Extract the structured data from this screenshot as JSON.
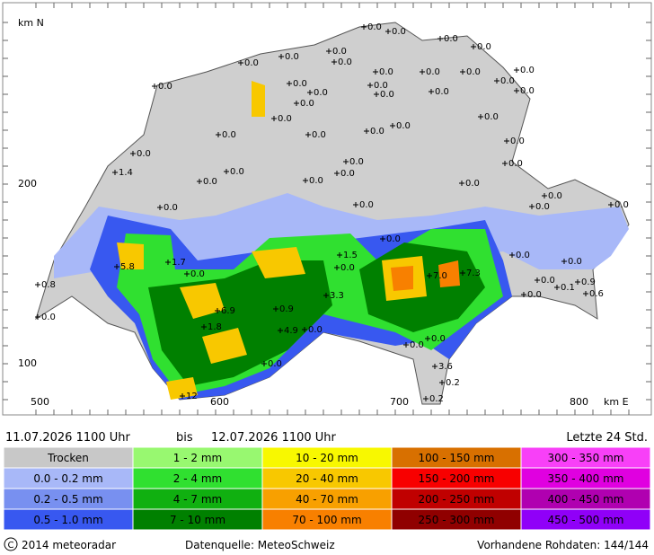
{
  "axis": {
    "north": "km N",
    "y200": "200",
    "y100": "100",
    "x500": "500",
    "x600": "600",
    "x700": "700",
    "x800": "800",
    "east": "km E"
  },
  "header": {
    "from": "11.07.2026 1100 Uhr",
    "bis": "bis",
    "to": "12.07.2026 1100 Uhr",
    "period": "Letzte 24 Std."
  },
  "legend": [
    [
      {
        "label": "Trocken",
        "color": "#c8c8c8"
      },
      {
        "label": "0.0 - 0.2 mm",
        "color": "#a8b8f8"
      },
      {
        "label": "0.2 - 0.5 mm",
        "color": "#7890f0"
      },
      {
        "label": "0.5 - 1.0 mm",
        "color": "#3858f0"
      }
    ],
    [
      {
        "label": "1 - 2 mm",
        "color": "#98f870"
      },
      {
        "label": "2 - 4 mm",
        "color": "#30e030"
      },
      {
        "label": "4 - 7 mm",
        "color": "#10b010"
      },
      {
        "label": "7 - 10 mm",
        "color": "#008000"
      }
    ],
    [
      {
        "label": "10 - 20 mm",
        "color": "#f8f800"
      },
      {
        "label": "20 - 40 mm",
        "color": "#f8c800"
      },
      {
        "label": "40 - 70 mm",
        "color": "#f8a000"
      },
      {
        "label": "70 - 100 mm",
        "color": "#f88000"
      }
    ],
    [
      {
        "label": "100 - 150 mm",
        "color": "#d87000"
      },
      {
        "label": "150 - 200 mm",
        "color": "#f80000"
      },
      {
        "label": "200 - 250 mm",
        "color": "#c00000"
      },
      {
        "label": "250 - 300 mm",
        "color": "#900000"
      }
    ],
    [
      {
        "label": "300 - 350 mm",
        "color": "#f840f8"
      },
      {
        "label": "350 - 400 mm",
        "color": "#e000e0"
      },
      {
        "label": "400 - 450 mm",
        "color": "#b000b0"
      },
      {
        "label": "450 - 500 mm",
        "color": "#9000f8"
      }
    ]
  ],
  "footer": {
    "copyright": "2014 meteoradar",
    "source": "Datenquelle: MeteoSchweiz",
    "raw": "Vorhandene Rohdaten: 144/144"
  },
  "stations": [
    "0.0",
    "0.0",
    "0.0",
    "0.0",
    "0.0",
    "0.0",
    "0.0",
    "0.0",
    "0.0",
    "0.0",
    "0.0",
    "0.0",
    "0.0",
    "0.0",
    "0.0",
    "0.0",
    "0.0",
    "0.0",
    "0.0",
    "0.0",
    "0.0",
    "0.0",
    "0.0",
    "0.0",
    "0.0",
    "0.0",
    "0.0",
    "0.0",
    "0.0",
    "0.0",
    "0.0",
    "1.4",
    "0.0",
    "0.0",
    "0.0",
    "0.0",
    "0.0",
    "0.0",
    "0.0",
    "0.0",
    "0.0",
    "0.0",
    "0.0",
    "1.7",
    "5.8",
    "1.5",
    "0.0",
    "0.0",
    "0.0",
    "0.0",
    "7.0",
    "7.3",
    "0.8",
    "0.0",
    "0.9",
    "0.1",
    "0.0",
    "0.6",
    "3.3",
    "6.9",
    "0.9",
    "0.0",
    "1.8",
    "0.0",
    "4.9",
    "0.0",
    "0.0",
    "0.0",
    "3.6",
    "0.2",
    "0.2",
    "12"
  ]
}
